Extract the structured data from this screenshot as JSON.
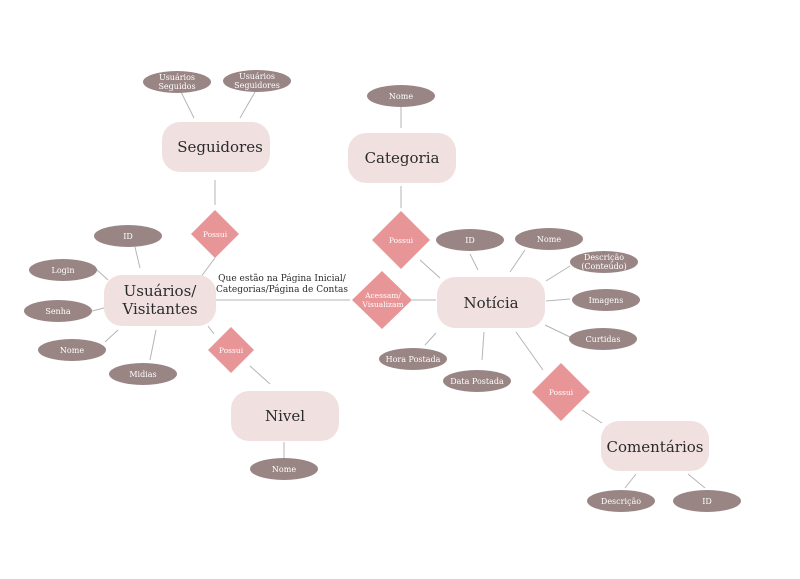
{
  "colors": {
    "entity_fill": "#f1e0e0",
    "attribute_fill": "#9a8585",
    "relationship_fill": "#e89597",
    "line": "#b5b5b5"
  },
  "entities": {
    "seguidores": "Seguidores",
    "categoria": "Categoria",
    "usuarios": [
      "Usuários/",
      "Visitantes"
    ],
    "noticia": "Notícia",
    "nivel": "Nivel",
    "comentarios": "Comentários"
  },
  "relationships": {
    "possui_seguidores": "Possui",
    "possui_categoria": "Possui",
    "acessam": [
      "Acessam/",
      "Visualizam"
    ],
    "possui_nivel": "Possui",
    "possui_comentarios": "Possui"
  },
  "attributes": {
    "usuarios_seguidos": [
      "Usuários",
      "Seguidos"
    ],
    "usuarios_seguidores": [
      "Usuários",
      "Seguidores"
    ],
    "categoria_nome": "Nome",
    "usuario_id": "ID",
    "usuario_login": "Login",
    "usuario_senha": "Senha",
    "usuario_nome": "Nome",
    "usuario_midias": "Midias",
    "noticia_id": "ID",
    "noticia_nome": "Nome",
    "noticia_descricao": [
      "Descrição",
      "(Conteúdo)"
    ],
    "noticia_imagens": "Imagens",
    "noticia_curtidas": "Curtidas",
    "noticia_hora": "Hora Postada",
    "noticia_data": "Data Postada",
    "nivel_nome": "Nome",
    "comentario_descricao": "Descrição",
    "comentario_id": "ID"
  },
  "annotation": [
    "Que estão na Página Inicial/",
    "Categorias/Página de Contas"
  ]
}
